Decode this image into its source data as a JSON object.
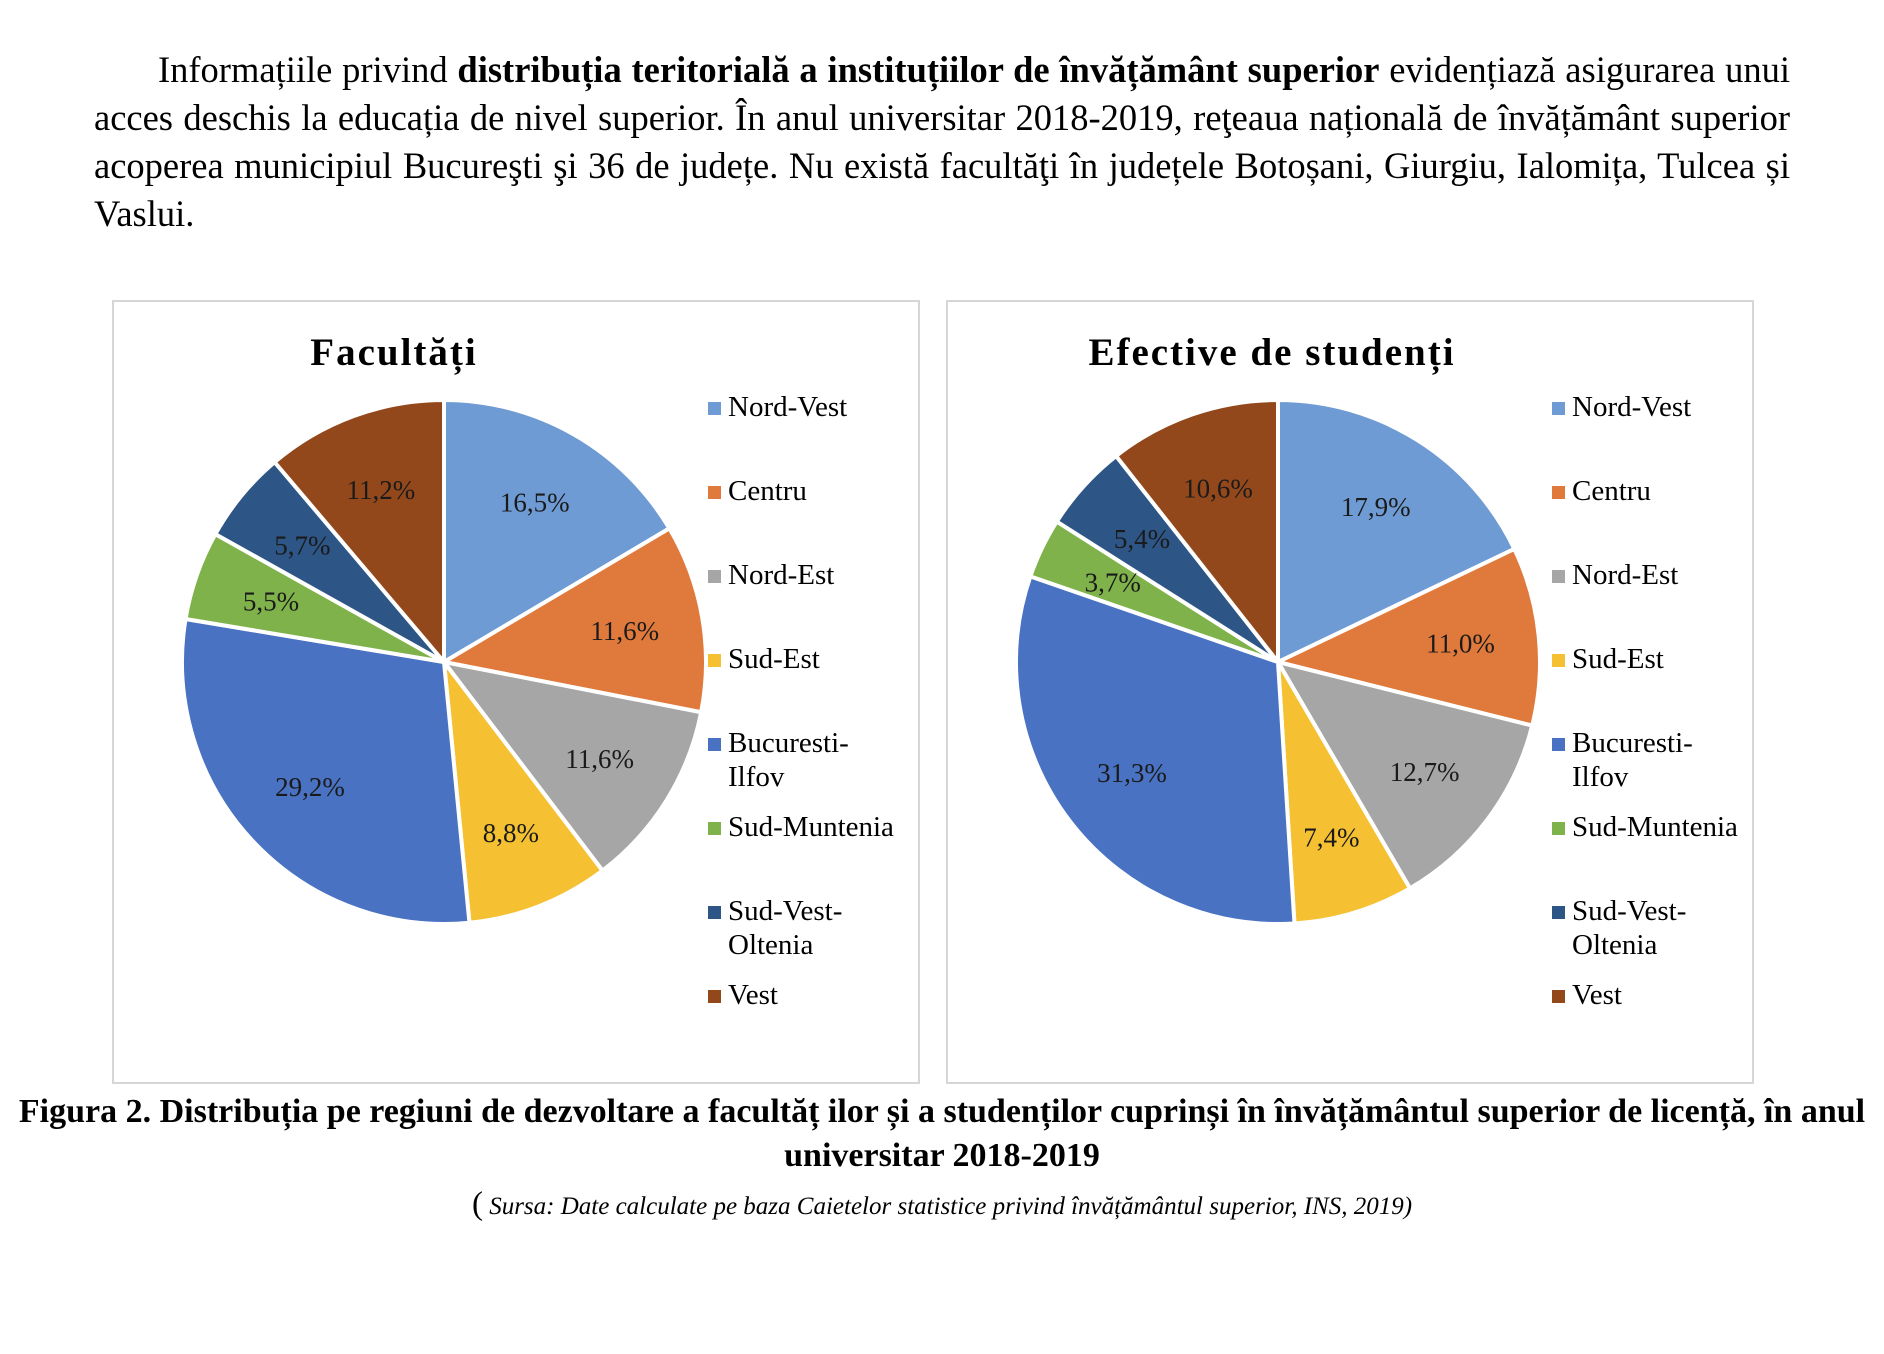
{
  "paragraph": {
    "part1": "Informațiile privind ",
    "bold": "distribuția teritorială a instituțiilor de învățământ superior",
    "part2": " evidențiază asigurarea unui acces deschis la educația de nivel superior. În anul universitar 2018-2019, reţeaua națională de învățământ superior acoperea municipiul Bucureşti şi 36 de județe. Nu există facultăţi în județele Botoșani, Giurgiu, Ialomița, Tulcea și Vaslui."
  },
  "colors": {
    "Nord-Vest": "#6f9bd4",
    "Centru": "#e07a3c",
    "Nord-Est": "#a6a6a6",
    "Sud-Est": "#f5c132",
    "Bucuresti-Ilfov": "#4a72c2",
    "Sud-Muntenia": "#7fb24a",
    "Sud-Vest-Oltenia": "#2d5585",
    "Vest": "#93481c"
  },
  "chart_data": [
    {
      "type": "pie",
      "title": "Facultăți",
      "categories": [
        "Nord-Vest",
        "Centru",
        "Nord-Est",
        "Sud-Est",
        "Bucuresti-Ilfov",
        "Sud-Muntenia",
        "Sud-Vest-Oltenia",
        "Vest"
      ],
      "legend_labels": [
        "Nord-Vest",
        "Centru",
        "Nord-Est",
        "Sud-Est",
        "Bucuresti-\nIlfov",
        "Sud-Muntenia",
        "Sud-Vest-\nOltenia",
        "Vest"
      ],
      "values": [
        16.5,
        11.6,
        11.6,
        8.8,
        29.2,
        5.5,
        5.7,
        11.2
      ],
      "labels": [
        "16,5%",
        "11,6%",
        "11,6%",
        "8,8%",
        "29,2%",
        "5,5%",
        "5,7%",
        "11,2%"
      ],
      "legend": "right"
    },
    {
      "type": "pie",
      "title": "Efective de studenți",
      "categories": [
        "Nord-Vest",
        "Centru",
        "Nord-Est",
        "Sud-Est",
        "Bucuresti-Ilfov",
        "Sud-Muntenia",
        "Sud-Vest-Oltenia",
        "Vest"
      ],
      "legend_labels": [
        "Nord-Vest",
        "Centru",
        "Nord-Est",
        "Sud-Est",
        "Bucuresti-\nIlfov",
        "Sud-Muntenia",
        "Sud-Vest-\nOltenia",
        "Vest"
      ],
      "values": [
        17.9,
        11.0,
        12.7,
        7.4,
        31.3,
        3.7,
        5.4,
        10.6
      ],
      "labels": [
        "17,9%",
        "11,0%",
        "12,7%",
        "7,4%",
        "31,3%",
        "3,7%",
        "5,4%",
        "10,6%"
      ],
      "legend": "right"
    }
  ],
  "caption": "Figura 2. Distribuția pe regiuni de dezvoltare a facultăț ilor și a studenților cuprinși în învățământul superior de licență, în anul universitar 2018-2019",
  "source": {
    "open": "(",
    "text": " Sursa: Date calculate pe baza Caietelor statistice privind învățământul superior, INS, 2019)"
  }
}
